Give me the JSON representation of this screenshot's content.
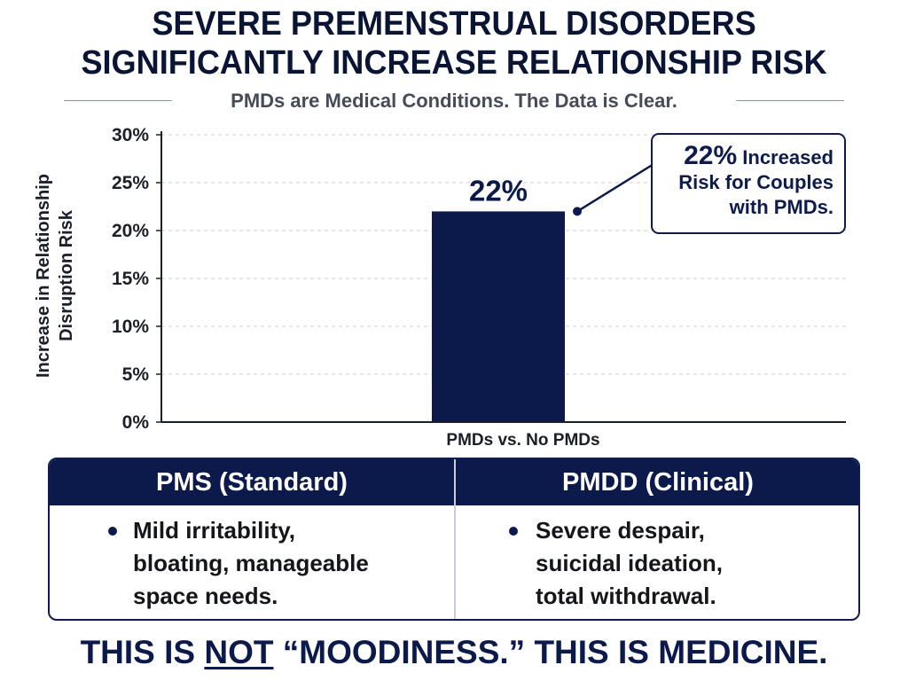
{
  "title_line1": "SEVERE PREMENSTRUAL DISORDERS",
  "title_line2": "SIGNIFICANTLY INCREASE RELATIONSHIP RISK",
  "subtitle": "PMDs are Medical Conditions. The Data is Clear.",
  "colors": {
    "navy": "#0c1a4b",
    "grid": "#d3d6dd",
    "axis": "#1b1f2a"
  },
  "chart_data": {
    "type": "bar",
    "categories": [
      "PMDs vs. No PMDs"
    ],
    "values": [
      22
    ],
    "value_labels": [
      "22%"
    ],
    "ylabel": "Increase in Relationship Disruption Risk",
    "xlabel": "",
    "ylim": [
      0,
      30
    ],
    "yticks": [
      "0%",
      "5%",
      "10%",
      "15%",
      "20%",
      "25%",
      "30%"
    ],
    "ytick_values": [
      0,
      5,
      10,
      15,
      20,
      25,
      30
    ],
    "grid": true,
    "annotation": {
      "value": "22%",
      "text": "Increased Risk for Couples with PMDs."
    }
  },
  "table": {
    "columns": [
      {
        "header": "PMS (Standard)",
        "bullet": "Mild irritability,\nbloating, manageable\nspace needs."
      },
      {
        "header": "PMDD (Clinical)",
        "bullet": "Severe despair,\nsuicidal ideation,\ntotal withdrawal."
      }
    ]
  },
  "footer": {
    "before": "THIS IS ",
    "emphasis": "NOT",
    "after": " “MOODINESS.” THIS IS MEDICINE."
  }
}
